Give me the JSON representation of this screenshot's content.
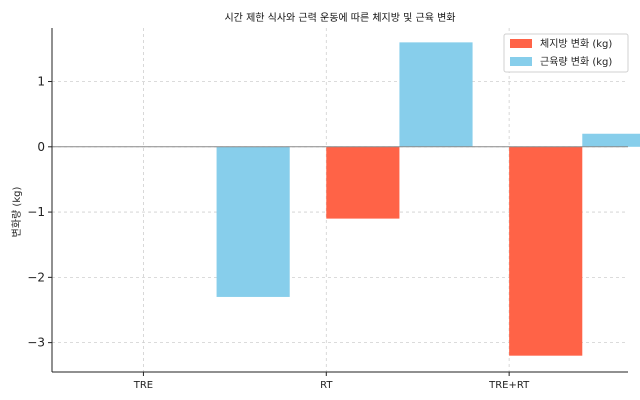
{
  "chart_data": {
    "type": "bar",
    "title": "시간 제한 식사와 근력 운동에 따른 체지방 및 근육 변화",
    "xlabel": "",
    "ylabel": "변화량 (kg)",
    "categories": [
      "TRE",
      "RT",
      "TRE+RT"
    ],
    "series": [
      {
        "name": "체지방 변화 (kg)",
        "color": "#ff6347",
        "values": [
          0,
          -1.1,
          -3.2
        ]
      },
      {
        "name": "근육량 변화 (kg)",
        "color": "#87ceeb",
        "values": [
          -2.3,
          1.6,
          0.2
        ]
      }
    ],
    "ylim": [
      -3.45,
      1.82
    ],
    "yticks": [
      1,
      0,
      -1,
      -2,
      -3
    ],
    "ytick_labels": [
      "1",
      "0",
      "−1",
      "−2",
      "−3"
    ],
    "grid": true,
    "legend_position": "top-right"
  }
}
